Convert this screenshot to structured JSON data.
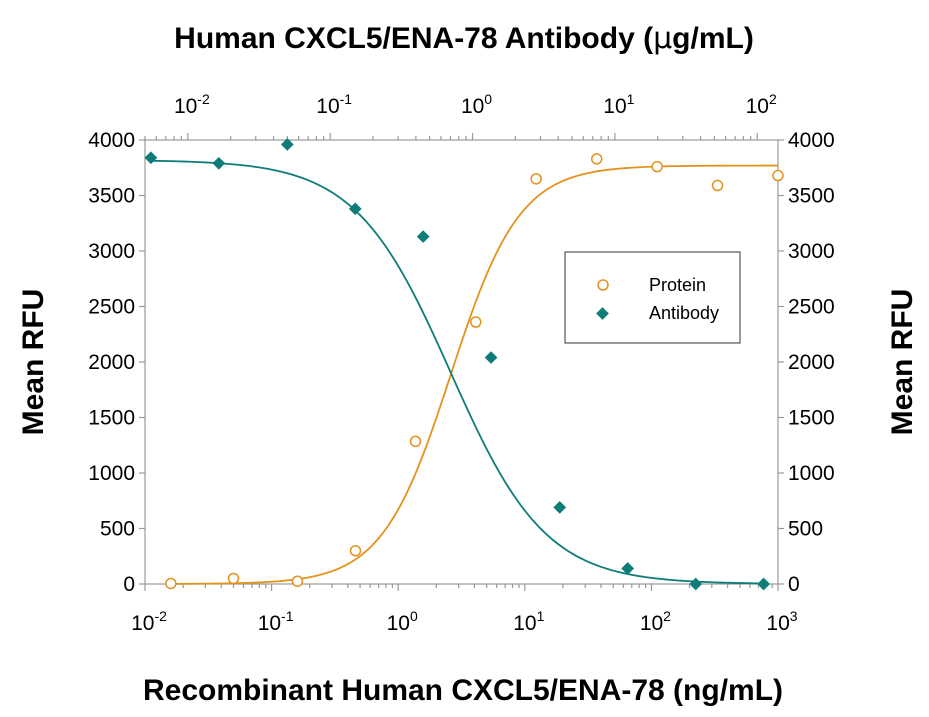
{
  "chart_data": {
    "type": "scatter",
    "title": "Human CXCL5/ENA-78 Antibody (",
    "title_mu": "μ",
    "title_tail": "g/mL)",
    "xlabel": "Recombinant Human CXCL5/ENA-78 (ng/mL)",
    "ylabel_left": "Mean RFU",
    "ylabel_right": "Mean RFU",
    "x_bottom_scale": "log",
    "x_bottom_range": [
      0.01,
      1000
    ],
    "x_top_scale": "log",
    "x_top_range": [
      0.005,
      140
    ],
    "ylim": [
      0,
      4000
    ],
    "y_ticks": [
      "0",
      "500",
      "1000",
      "1500",
      "2000",
      "2500",
      "3000",
      "3500",
      "4000"
    ],
    "x_bottom_ticks": [
      {
        "base": "10",
        "exp": "-2"
      },
      {
        "base": "10",
        "exp": "-1"
      },
      {
        "base": "10",
        "exp": "0"
      },
      {
        "base": "10",
        "exp": "1"
      },
      {
        "base": "10",
        "exp": "2"
      },
      {
        "base": "10",
        "exp": "3"
      }
    ],
    "x_top_ticks": [
      {
        "base": "10",
        "exp": "-2"
      },
      {
        "base": "10",
        "exp": "-1"
      },
      {
        "base": "10",
        "exp": "0"
      },
      {
        "base": "10",
        "exp": "1"
      },
      {
        "base": "10",
        "exp": "2"
      }
    ],
    "legend": {
      "position": "right-middle"
    },
    "series": [
      {
        "name": "Protein",
        "axis": "bottom",
        "marker": "open-circle",
        "color": "#E3921E",
        "x": [
          0.016,
          0.05,
          0.16,
          0.46,
          1.37,
          4.1,
          12.3,
          37,
          111,
          333,
          1000
        ],
        "y": [
          5,
          50,
          25,
          300,
          1285,
          2360,
          3650,
          3830,
          3760,
          3590,
          3680
        ],
        "fit": {
          "bottom": 0,
          "top": 3770,
          "ec50": 2.6,
          "hill": 1.6
        }
      },
      {
        "name": "Antibody",
        "axis": "top",
        "marker": "filled-diamond",
        "color": "#0E7C78",
        "x": [
          0.0055,
          0.0165,
          0.05,
          0.15,
          0.45,
          1.35,
          4.1,
          12.3,
          37,
          111
        ],
        "y": [
          3840,
          3790,
          3960,
          3380,
          3130,
          2040,
          690,
          140,
          0,
          0
        ],
        "fit": {
          "bottom": 0,
          "top": 3820,
          "ec50": 0.7,
          "hill": 1.3
        }
      }
    ]
  }
}
